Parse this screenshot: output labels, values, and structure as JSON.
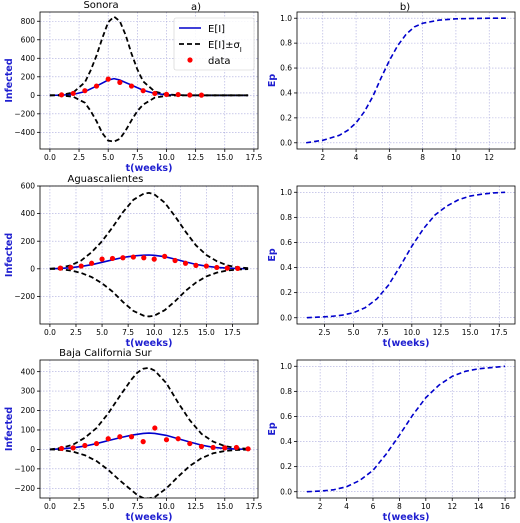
{
  "panel_tags": {
    "a": "a)",
    "b": "b)"
  },
  "legend": {
    "mean": "E[I]",
    "band": "E[I]±σ",
    "band_sub": "I",
    "data": "data"
  },
  "colors": {
    "mean": "#0000cc",
    "band": "#000000",
    "data": "#ff0000",
    "ep": "#0000cc",
    "label": "#1f1fd0",
    "grid": "#aaaadd"
  },
  "chart_data": [
    {
      "type": "line",
      "title": "Sonora",
      "xlabel": "t(weeks)",
      "ylabel": "Infected",
      "xlim": [
        -0.85,
        17.85
      ],
      "ylim": [
        -580,
        900
      ],
      "xticks": [
        0.0,
        2.5,
        5.0,
        7.5,
        10.0,
        12.5,
        15.0,
        17.5
      ],
      "xtick_labels": [
        "0.0",
        "2.5",
        "5.0",
        "7.5",
        "10.0",
        "12.5",
        "15.0",
        "17.5"
      ],
      "yticks": [
        -400,
        -200,
        0,
        200,
        400,
        600,
        800
      ],
      "ytick_labels": [
        "−400",
        "−200",
        "0",
        "200",
        "400",
        "600",
        "800"
      ],
      "grid": true,
      "legend_position": "top-right",
      "series": [
        {
          "name": "E[I]",
          "style": "solid",
          "x": [
            0,
            1,
            2,
            3,
            4,
            5,
            5.5,
            6,
            7,
            8,
            9,
            10,
            11,
            12,
            13,
            14,
            15,
            16,
            17
          ],
          "y": [
            0,
            2,
            10,
            40,
            100,
            165,
            180,
            165,
            110,
            55,
            20,
            6,
            2,
            0,
            0,
            0,
            0,
            0,
            0
          ]
        },
        {
          "name": "E[I]+σ",
          "style": "dashed",
          "x": [
            0,
            1,
            2,
            3,
            3.5,
            4,
            4.5,
            5,
            5.5,
            6,
            6.5,
            7,
            7.5,
            8,
            9,
            10,
            11,
            12,
            13,
            14,
            15,
            17
          ],
          "y": [
            0,
            5,
            30,
            140,
            270,
            430,
            620,
            790,
            850,
            800,
            650,
            450,
            280,
            150,
            40,
            10,
            2,
            0,
            0,
            0,
            0,
            0
          ]
        },
        {
          "name": "E[I]-σ",
          "style": "dashed",
          "x": [
            0,
            1,
            2,
            3,
            3.5,
            4,
            4.5,
            5,
            5.5,
            6,
            6.5,
            7,
            7.5,
            8,
            9,
            10,
            11,
            12,
            13,
            14,
            15,
            17
          ],
          "y": [
            0,
            -2,
            -15,
            -80,
            -170,
            -280,
            -410,
            -490,
            -500,
            -470,
            -380,
            -270,
            -170,
            -100,
            -25,
            -5,
            -1,
            0,
            0,
            0,
            0,
            0
          ]
        },
        {
          "name": "data",
          "style": "points",
          "x": [
            1,
            2,
            3,
            4,
            5,
            6,
            7,
            8,
            9,
            10,
            11,
            12,
            13
          ],
          "y": [
            5,
            20,
            50,
            100,
            175,
            140,
            100,
            50,
            20,
            10,
            8,
            3,
            2
          ]
        }
      ]
    },
    {
      "type": "line",
      "title": "",
      "xlabel": "",
      "ylabel": "Ep",
      "xlim": [
        0.45,
        13.55
      ],
      "ylim": [
        -0.05,
        1.05
      ],
      "xticks": [
        2,
        4,
        6,
        8,
        10,
        12
      ],
      "xtick_labels": [
        "2",
        "4",
        "6",
        "8",
        "10",
        "12"
      ],
      "yticks": [
        0.0,
        0.2,
        0.4,
        0.6,
        0.8,
        1.0
      ],
      "ytick_labels": [
        "0.0",
        "0.2",
        "0.4",
        "0.6",
        "0.8",
        "1.0"
      ],
      "grid": true,
      "series": [
        {
          "name": "",
          "style": "dashed",
          "x": [
            1,
            2,
            3,
            3.5,
            4,
            4.5,
            5,
            5.5,
            6,
            6.5,
            7,
            7.5,
            8,
            9,
            10,
            11,
            12,
            13
          ],
          "y": [
            0.0,
            0.02,
            0.06,
            0.1,
            0.16,
            0.25,
            0.37,
            0.52,
            0.66,
            0.78,
            0.87,
            0.93,
            0.96,
            0.985,
            0.995,
            0.998,
            1.0,
            1.0
          ]
        }
      ]
    },
    {
      "type": "line",
      "title": "Aguascalientes",
      "xlabel": "t(weeks)",
      "ylabel": "Infected",
      "xlim": [
        -0.95,
        19.95
      ],
      "ylim": [
        -400,
        600
      ],
      "xticks": [
        0.0,
        2.5,
        5.0,
        7.5,
        10.0,
        12.5,
        15.0,
        17.5
      ],
      "xtick_labels": [
        "0.0",
        "2.5",
        "5.0",
        "7.5",
        "10.0",
        "12.5",
        "15.0",
        "17.5"
      ],
      "yticks": [
        -200,
        0,
        200,
        400,
        600
      ],
      "ytick_labels": [
        "−200",
        "0",
        "200",
        "400",
        "600"
      ],
      "grid": true,
      "series": [
        {
          "name": "E[I]",
          "style": "solid",
          "x": [
            0,
            1,
            2,
            3,
            4,
            5,
            6,
            7,
            8,
            9,
            9.5,
            10,
            11,
            12,
            13,
            14,
            15,
            16,
            17,
            18,
            19
          ],
          "y": [
            0,
            3,
            8,
            17,
            30,
            47,
            65,
            82,
            93,
            99,
            100,
            98,
            88,
            70,
            50,
            32,
            19,
            10,
            5,
            2,
            1
          ]
        },
        {
          "name": "E[I]+σ",
          "style": "dashed",
          "x": [
            0,
            1,
            2,
            3,
            4,
            5,
            6,
            7,
            8,
            9,
            9.5,
            10,
            11,
            12,
            13,
            14,
            15,
            16,
            17,
            18,
            19
          ],
          "y": [
            0,
            8,
            25,
            60,
            120,
            200,
            300,
            410,
            500,
            545,
            550,
            540,
            480,
            380,
            270,
            170,
            100,
            55,
            25,
            10,
            5
          ]
        },
        {
          "name": "E[I]-σ",
          "style": "dashed",
          "x": [
            0,
            1,
            2,
            3,
            4,
            5,
            6,
            7,
            8,
            9,
            9.5,
            10,
            11,
            12,
            13,
            14,
            15,
            16,
            17,
            18,
            19
          ],
          "y": [
            0,
            -3,
            -12,
            -30,
            -60,
            -105,
            -165,
            -240,
            -305,
            -340,
            -345,
            -340,
            -300,
            -235,
            -160,
            -100,
            -55,
            -28,
            -12,
            -5,
            -2
          ]
        },
        {
          "name": "data",
          "style": "points",
          "x": [
            1,
            2,
            3,
            4,
            5,
            6,
            7,
            8,
            9,
            10,
            11,
            12,
            13,
            14,
            15,
            16,
            17,
            18
          ],
          "y": [
            5,
            10,
            20,
            40,
            70,
            75,
            80,
            85,
            80,
            70,
            90,
            60,
            40,
            25,
            20,
            10,
            5,
            3
          ]
        }
      ]
    },
    {
      "type": "line",
      "title": "",
      "xlabel": "t(weeks)",
      "ylabel": "Ep",
      "xlim": [
        0.15,
        18.85
      ],
      "ylim": [
        -0.05,
        1.05
      ],
      "xticks": [
        2.5,
        5.0,
        7.5,
        10.0,
        12.5,
        15.0,
        17.5
      ],
      "xtick_labels": [
        "2.5",
        "5.0",
        "7.5",
        "10.0",
        "12.5",
        "15.0",
        "17.5"
      ],
      "yticks": [
        0.0,
        0.2,
        0.4,
        0.6,
        0.8,
        1.0
      ],
      "ytick_labels": [
        "0.0",
        "0.2",
        "0.4",
        "0.6",
        "0.8",
        "1.0"
      ],
      "grid": true,
      "series": [
        {
          "name": "",
          "style": "dashed",
          "x": [
            1,
            2,
            3,
            4,
            5,
            6,
            7,
            8,
            9,
            10,
            11,
            12,
            13,
            14,
            15,
            16,
            17,
            18
          ],
          "y": [
            0.0,
            0.005,
            0.01,
            0.02,
            0.04,
            0.08,
            0.15,
            0.26,
            0.41,
            0.57,
            0.71,
            0.82,
            0.89,
            0.94,
            0.97,
            0.985,
            0.995,
            1.0
          ]
        }
      ]
    },
    {
      "type": "line",
      "title": "Baja California Sur",
      "xlabel": "t(weeks)",
      "ylabel": "Infected",
      "xlim": [
        -0.85,
        17.85
      ],
      "ylim": [
        -250,
        460
      ],
      "xticks": [
        0.0,
        2.5,
        5.0,
        7.5,
        10.0,
        12.5,
        15.0,
        17.5
      ],
      "xtick_labels": [
        "0.0",
        "2.5",
        "5.0",
        "7.5",
        "10.0",
        "12.5",
        "15.0",
        "17.5"
      ],
      "yticks": [
        -200,
        -100,
        0,
        100,
        200,
        300,
        400
      ],
      "ytick_labels": [
        "−200",
        "−100",
        "0",
        "100",
        "200",
        "300",
        "400"
      ],
      "grid": true,
      "series": [
        {
          "name": "E[I]",
          "style": "solid",
          "x": [
            0,
            1,
            2,
            3,
            4,
            5,
            6,
            7,
            8,
            8.5,
            9,
            10,
            11,
            12,
            13,
            14,
            15,
            16,
            17
          ],
          "y": [
            0,
            3,
            8,
            17,
            30,
            45,
            60,
            73,
            82,
            84,
            82,
            72,
            55,
            38,
            22,
            11,
            5,
            2,
            1
          ]
        },
        {
          "name": "E[I]+σ",
          "style": "dashed",
          "x": [
            0,
            1,
            2,
            3,
            4,
            5,
            6,
            7,
            7.5,
            8,
            8.5,
            9,
            10,
            11,
            12,
            13,
            14,
            15,
            16,
            17
          ],
          "y": [
            0,
            8,
            25,
            60,
            110,
            185,
            275,
            360,
            395,
            415,
            420,
            405,
            340,
            240,
            150,
            80,
            40,
            17,
            7,
            3
          ]
        },
        {
          "name": "E[I]-σ",
          "style": "dashed",
          "x": [
            0,
            1,
            2,
            3,
            4,
            5,
            6,
            7,
            7.5,
            8,
            8.5,
            9,
            10,
            11,
            12,
            13,
            14,
            15,
            16,
            17
          ],
          "y": [
            0,
            -3,
            -12,
            -30,
            -60,
            -105,
            -160,
            -210,
            -235,
            -250,
            -252,
            -245,
            -200,
            -140,
            -85,
            -45,
            -20,
            -8,
            -3,
            -1
          ]
        },
        {
          "name": "data",
          "style": "points",
          "x": [
            1,
            2,
            3,
            4,
            5,
            6,
            7,
            8,
            9,
            10,
            11,
            12,
            13,
            14,
            15,
            16,
            17
          ],
          "y": [
            5,
            8,
            20,
            30,
            55,
            65,
            65,
            40,
            110,
            50,
            55,
            30,
            15,
            10,
            8,
            10,
            3
          ]
        }
      ]
    },
    {
      "type": "line",
      "title": "",
      "xlabel": "t(weeks)",
      "ylabel": "Ep",
      "xlim": [
        0.25,
        16.75
      ],
      "ylim": [
        -0.05,
        1.05
      ],
      "xticks": [
        2,
        4,
        6,
        8,
        10,
        12,
        14,
        16
      ],
      "xtick_labels": [
        "2",
        "4",
        "6",
        "8",
        "10",
        "12",
        "14",
        "16"
      ],
      "yticks": [
        0.0,
        0.2,
        0.4,
        0.6,
        0.8,
        1.0
      ],
      "ytick_labels": [
        "0.0",
        "0.2",
        "0.4",
        "0.6",
        "0.8",
        "1.0"
      ],
      "grid": true,
      "series": [
        {
          "name": "",
          "style": "dashed",
          "x": [
            1,
            2,
            3,
            4,
            5,
            6,
            7,
            8,
            9,
            10,
            11,
            12,
            13,
            14,
            15,
            16
          ],
          "y": [
            0.0,
            0.005,
            0.015,
            0.04,
            0.09,
            0.17,
            0.3,
            0.45,
            0.61,
            0.75,
            0.85,
            0.92,
            0.96,
            0.98,
            0.99,
            1.0
          ]
        }
      ]
    }
  ]
}
